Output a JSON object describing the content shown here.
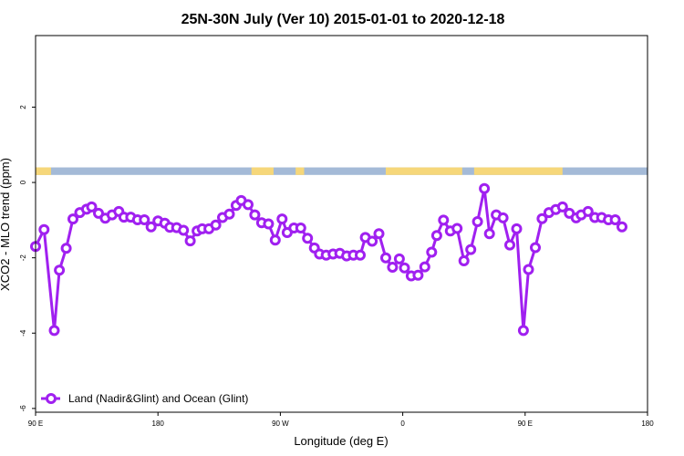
{
  "chart_data": {
    "type": "line",
    "title": "25N-30N July (Ver 10)   2015-01-01 to 2020-12-18",
    "xlabel": "Longitude (deg E)",
    "ylabel": "XCO2 - MLO trend (ppm)",
    "xlim": [
      90,
      450
    ],
    "ylim": [
      -6.1,
      3.9
    ],
    "x_ticks": [
      {
        "value": 90,
        "label": "90 E"
      },
      {
        "value": 162,
        "label": "180"
      },
      {
        "value": 234,
        "label": "90 W"
      },
      {
        "value": 306,
        "label": "0"
      },
      {
        "value": 378,
        "label": "90 E"
      },
      {
        "value": 450,
        "label": "180"
      }
    ],
    "y_ticks": [
      {
        "value": -6,
        "label": "-6"
      },
      {
        "value": -4,
        "label": "-4"
      },
      {
        "value": -2,
        "label": "-2"
      },
      {
        "value": 0,
        "label": "0"
      },
      {
        "value": 2,
        "label": "2"
      }
    ],
    "legend": {
      "position": "bottom-left"
    },
    "series": [
      {
        "name": "Land (Nadir&Glint) and Ocean (Glint)",
        "color": "#a020f0",
        "points": [
          [
            90.0,
            -1.7
          ],
          [
            95.0,
            -1.25
          ],
          [
            101.0,
            -3.93
          ],
          [
            104.0,
            -2.33
          ],
          [
            108.0,
            -1.75
          ],
          [
            112.0,
            -0.97
          ],
          [
            116.0,
            -0.8
          ],
          [
            120.0,
            -0.71
          ],
          [
            123.0,
            -0.65
          ],
          [
            127.0,
            -0.82
          ],
          [
            131.0,
            -0.95
          ],
          [
            135.0,
            -0.86
          ],
          [
            139.0,
            -0.77
          ],
          [
            142.0,
            -0.92
          ],
          [
            146.0,
            -0.92
          ],
          [
            150.0,
            -0.99
          ],
          [
            154.0,
            -0.99
          ],
          [
            158.0,
            -1.18
          ],
          [
            162.0,
            -1.02
          ],
          [
            166.0,
            -1.08
          ],
          [
            169.0,
            -1.19
          ],
          [
            173.0,
            -1.2
          ],
          [
            177.0,
            -1.27
          ],
          [
            181.0,
            -1.55
          ],
          [
            185.0,
            -1.29
          ],
          [
            188.0,
            -1.23
          ],
          [
            192.0,
            -1.23
          ],
          [
            196.0,
            -1.13
          ],
          [
            200.0,
            -0.93
          ],
          [
            204.0,
            -0.84
          ],
          [
            208.0,
            -0.61
          ],
          [
            211.0,
            -0.48
          ],
          [
            215.0,
            -0.59
          ],
          [
            219.0,
            -0.86
          ],
          [
            223.0,
            -1.07
          ],
          [
            227.0,
            -1.1
          ],
          [
            231.0,
            -1.53
          ],
          [
            235.0,
            -0.97
          ],
          [
            238.0,
            -1.33
          ],
          [
            242.0,
            -1.21
          ],
          [
            246.0,
            -1.21
          ],
          [
            250.0,
            -1.48
          ],
          [
            254.0,
            -1.74
          ],
          [
            257.0,
            -1.9
          ],
          [
            261.0,
            -1.93
          ],
          [
            265.0,
            -1.9
          ],
          [
            269.0,
            -1.88
          ],
          [
            273.0,
            -1.95
          ],
          [
            277.0,
            -1.93
          ],
          [
            281.0,
            -1.93
          ],
          [
            284.0,
            -1.46
          ],
          [
            288.0,
            -1.56
          ],
          [
            292.0,
            -1.36
          ],
          [
            296.0,
            -2.0
          ],
          [
            300.0,
            -2.25
          ],
          [
            304.0,
            -2.03
          ],
          [
            307.0,
            -2.27
          ],
          [
            311.0,
            -2.48
          ],
          [
            315.0,
            -2.46
          ],
          [
            319.0,
            -2.24
          ],
          [
            323.0,
            -1.85
          ],
          [
            326.0,
            -1.41
          ],
          [
            330.0,
            -1.0
          ],
          [
            334.0,
            -1.29
          ],
          [
            338.0,
            -1.22
          ],
          [
            342.0,
            -2.08
          ],
          [
            346.0,
            -1.78
          ],
          [
            350.0,
            -1.04
          ],
          [
            354.0,
            -0.16
          ],
          [
            357.0,
            -1.36
          ],
          [
            361.0,
            -0.86
          ],
          [
            365.0,
            -0.94
          ],
          [
            369.0,
            -1.66
          ],
          [
            373.0,
            -1.23
          ],
          [
            377.0,
            -3.93
          ],
          [
            380.0,
            -2.31
          ],
          [
            384.0,
            -1.73
          ],
          [
            388.0,
            -0.96
          ],
          [
            392.0,
            -0.8
          ],
          [
            396.0,
            -0.72
          ],
          [
            400.0,
            -0.65
          ],
          [
            404.0,
            -0.82
          ],
          [
            408.0,
            -0.94
          ],
          [
            411.0,
            -0.86
          ],
          [
            415.0,
            -0.77
          ],
          [
            419.0,
            -0.93
          ],
          [
            423.0,
            -0.93
          ],
          [
            427.0,
            -0.99
          ],
          [
            431.0,
            -0.99
          ],
          [
            435.0,
            -1.18
          ]
        ]
      }
    ],
    "land_ocean_strip": {
      "y_range": [
        0.2,
        0.4
      ],
      "ocean_color": "#a4bad7",
      "land_color": "#f6d77a",
      "land_segments": [
        [
          90.0,
          99.0
        ],
        [
          90.0,
          99.0
        ],
        [
          217.0,
          227.0
        ],
        [
          218.0,
          224.0
        ],
        [
          225.0,
          230.0
        ],
        [
          223.0,
          226.0
        ],
        [
          243.0,
          248.0
        ],
        [
          296.0,
          341.0
        ],
        [
          348.0,
          400.0
        ]
      ]
    }
  }
}
